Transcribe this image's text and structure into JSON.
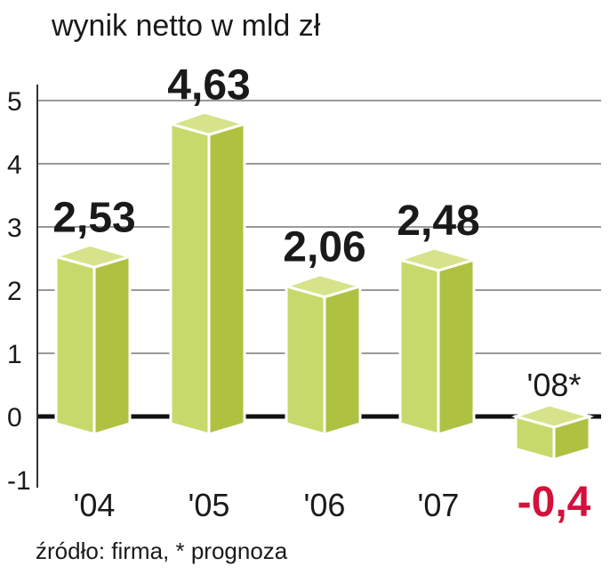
{
  "chart_data": {
    "type": "bar",
    "title": "wynik netto w mld zł",
    "categories": [
      "'04",
      "'05",
      "'06",
      "'07",
      "'08*"
    ],
    "values": [
      2.53,
      4.63,
      2.06,
      2.48,
      -0.4
    ],
    "value_labels": [
      "2,53",
      "4,63",
      "2,06",
      "2,48",
      "-0,4"
    ],
    "ylim": [
      -1,
      5
    ],
    "yticks": [
      "-1",
      "0",
      "1",
      "2",
      "3",
      "4",
      "5"
    ],
    "grid": true,
    "source": "źródło: firma, * prognoza",
    "colors": {
      "front": "#c8d96c",
      "side": "#afc141",
      "top": "#d6e38a",
      "negative_label": "#d2123c",
      "text": "#1a1a1a",
      "grid": "#9a9a9a"
    }
  }
}
